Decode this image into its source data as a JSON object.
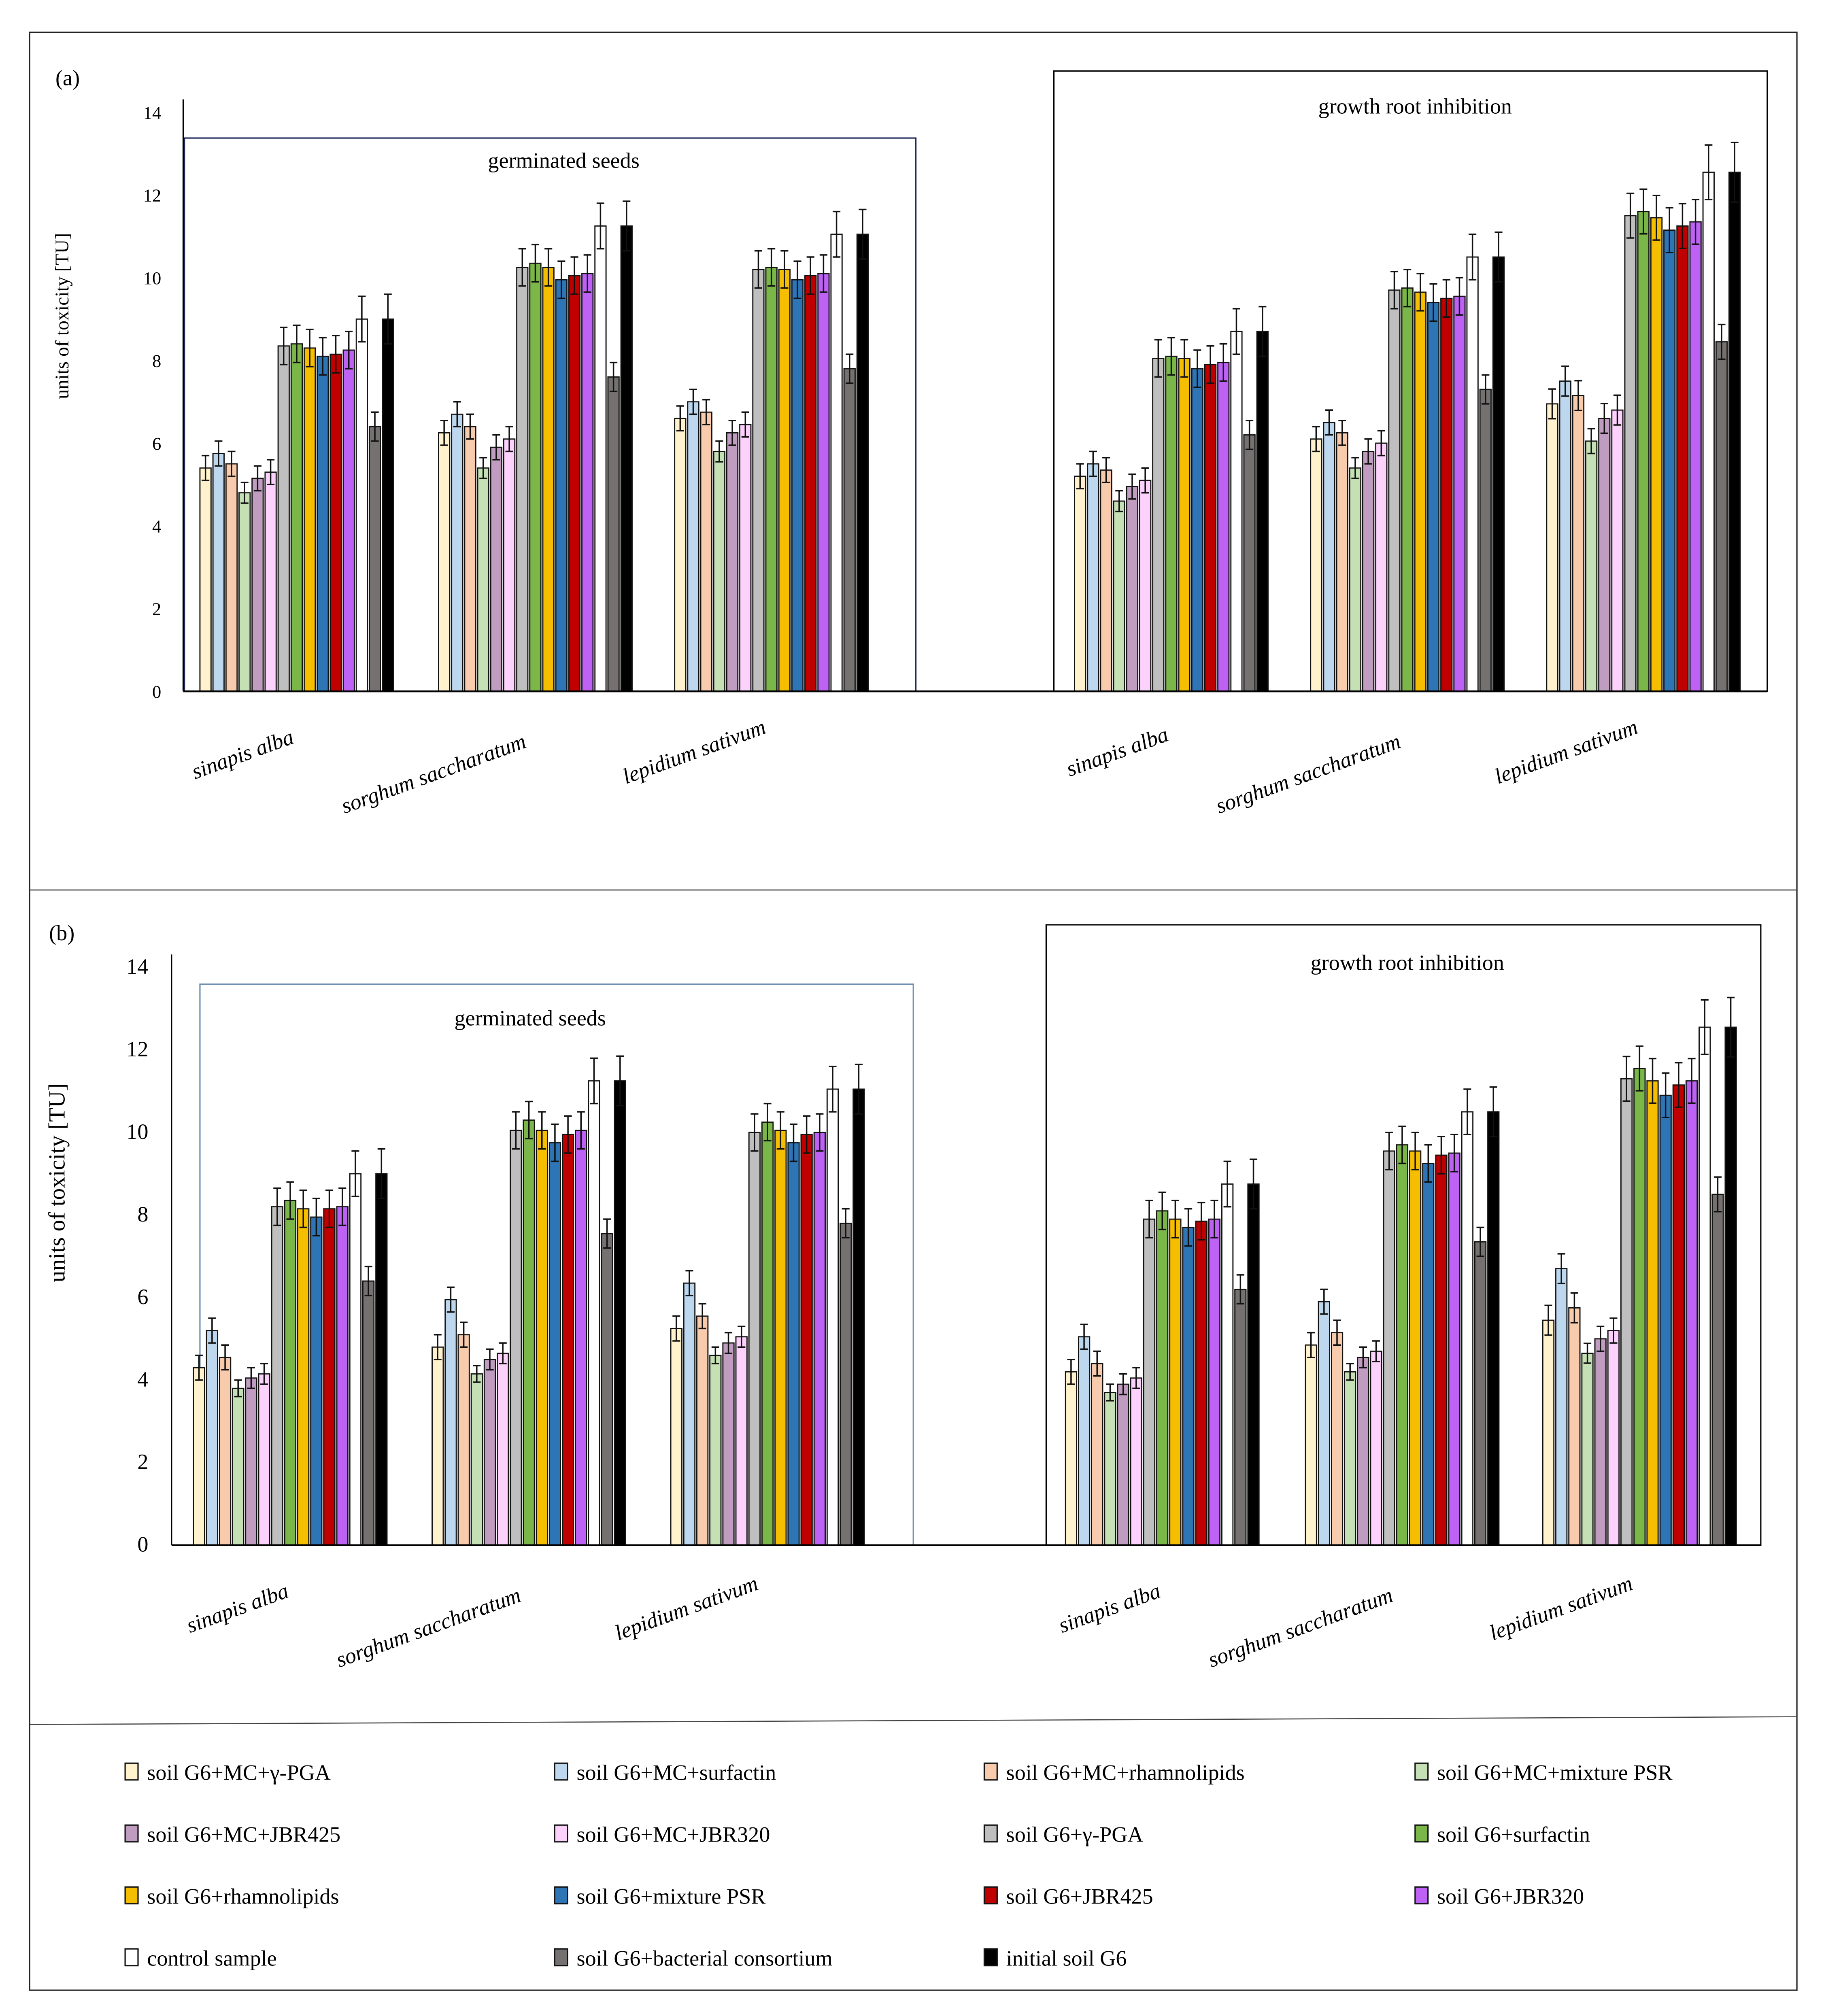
{
  "series": [
    {
      "name": "soil G6+MC+γ-PGA",
      "color": "#FFF2CC"
    },
    {
      "name": "soil G6+MC+surfactin",
      "color": "#BDD7EE"
    },
    {
      "name": "soil G6+MC+rhamnolipids",
      "color": "#F8CBAD"
    },
    {
      "name": "soil G6+MC+mixture PSR",
      "color": "#C5E0B4"
    },
    {
      "name": "soil G6+MC+JBR425",
      "color": "#C09CC0"
    },
    {
      "name": "soil G6+MC+JBR320",
      "color": "#FCD2FC"
    },
    {
      "name": "soil G6+γ-PGA",
      "color": "#BFBFBF"
    },
    {
      "name": "soil G6+surfactin",
      "color": "#7AB648"
    },
    {
      "name": "soil G6+rhamnolipids",
      "color": "#F5BE00"
    },
    {
      "name": "soil G6+mixture PSR",
      "color": "#2E75B6"
    },
    {
      "name": "soil G6+JBR425",
      "color": "#C00000"
    },
    {
      "name": "soil G6+JBR320",
      "color": "#BD62F5"
    },
    {
      "name": "control sample",
      "color": "#FFFFFF"
    },
    {
      "name": "soil G6+bacterial consortium",
      "color": "#767171"
    },
    {
      "name": "initial soil G6",
      "color": "#000000"
    }
  ],
  "chart_data": [
    {
      "type": "bar",
      "panel_label": "(a)",
      "ylabel": "units of toxicity [TU]",
      "ylim": [
        0,
        14
      ],
      "yticks": [
        "0",
        "2",
        "4",
        "6",
        "8",
        "10",
        "12",
        "14"
      ],
      "errors": [
        0.3,
        0.3,
        0.3,
        0.25,
        0.3,
        0.3,
        0.45,
        0.45,
        0.45,
        0.45,
        0.45,
        0.45,
        0.55,
        0.35,
        0.6
      ],
      "groups": [
        {
          "title": "germinated seeds",
          "categories": [
            {
              "name": "sinapis alba",
              "values": [
                5.4,
                5.75,
                5.5,
                4.8,
                5.15,
                5.3,
                8.35,
                8.4,
                8.3,
                8.1,
                8.15,
                8.25,
                9.0,
                6.4,
                9.0
              ]
            },
            {
              "name": "sorghum saccharatum",
              "values": [
                6.25,
                6.7,
                6.4,
                5.4,
                5.9,
                6.1,
                10.25,
                10.35,
                10.25,
                9.95,
                10.05,
                10.1,
                11.25,
                7.6,
                11.25
              ]
            },
            {
              "name": "lepidium sativum",
              "values": [
                6.6,
                7.0,
                6.75,
                5.8,
                6.25,
                6.45,
                10.2,
                10.25,
                10.2,
                9.95,
                10.05,
                10.1,
                11.05,
                7.8,
                11.05
              ]
            }
          ]
        },
        {
          "title": "growth root inhibition",
          "categories": [
            {
              "name": "sinapis alba",
              "values": [
                5.2,
                5.5,
                5.35,
                4.6,
                4.95,
                5.1,
                8.05,
                8.1,
                8.05,
                7.8,
                7.9,
                7.95,
                8.7,
                6.2,
                8.7
              ]
            },
            {
              "name": "sorghum saccharatum",
              "values": [
                6.1,
                6.5,
                6.25,
                5.4,
                5.8,
                6.0,
                9.7,
                9.75,
                9.65,
                9.4,
                9.5,
                9.55,
                10.5,
                7.3,
                10.5
              ]
            },
            {
              "name": "lepidium sativum",
              "values": [
                6.95,
                7.5,
                7.15,
                6.05,
                6.6,
                6.8,
                11.5,
                11.6,
                11.45,
                11.15,
                11.25,
                11.35,
                12.55,
                8.45,
                12.55
              ]
            }
          ]
        }
      ]
    },
    {
      "type": "bar",
      "panel_label": "(b)",
      "ylabel": "units of toxicity [TU]",
      "ylim": [
        0,
        14
      ],
      "yticks": [
        "0",
        "2",
        "4",
        "6",
        "8",
        "10",
        "12",
        "14"
      ],
      "errors": [
        0.3,
        0.3,
        0.3,
        0.2,
        0.25,
        0.25,
        0.45,
        0.45,
        0.45,
        0.45,
        0.45,
        0.45,
        0.55,
        0.35,
        0.6
      ],
      "groups": [
        {
          "title": "germinated seeds",
          "categories": [
            {
              "name": "sinapis alba",
              "values": [
                4.3,
                5.2,
                4.55,
                3.8,
                4.05,
                4.15,
                8.2,
                8.35,
                8.15,
                7.95,
                8.15,
                8.2,
                9.0,
                6.4,
                9.0
              ]
            },
            {
              "name": "sorghum saccharatum",
              "values": [
                4.8,
                5.95,
                5.1,
                4.15,
                4.5,
                4.65,
                10.05,
                10.3,
                10.05,
                9.75,
                9.95,
                10.05,
                11.25,
                7.55,
                11.25
              ]
            },
            {
              "name": "lepidium sativum",
              "values": [
                5.25,
                6.35,
                5.55,
                4.6,
                4.9,
                5.05,
                10.0,
                10.25,
                10.05,
                9.75,
                9.95,
                10.0,
                11.05,
                7.8,
                11.05
              ]
            }
          ]
        },
        {
          "title": "growth root inhibition",
          "categories": [
            {
              "name": "sinapis alba",
              "values": [
                4.2,
                5.05,
                4.4,
                3.7,
                3.9,
                4.05,
                7.9,
                8.1,
                7.9,
                7.7,
                7.85,
                7.9,
                8.75,
                6.2,
                8.75
              ]
            },
            {
              "name": "sorghum saccharatum",
              "values": [
                4.85,
                5.9,
                5.15,
                4.2,
                4.55,
                4.7,
                9.55,
                9.7,
                9.55,
                9.25,
                9.45,
                9.5,
                10.5,
                7.35,
                10.5
              ]
            },
            {
              "name": "lepidium sativum",
              "values": [
                5.45,
                6.7,
                5.75,
                4.65,
                5.0,
                5.2,
                11.3,
                11.55,
                11.25,
                10.9,
                11.15,
                11.25,
                12.55,
                8.5,
                12.55
              ]
            }
          ]
        }
      ]
    }
  ]
}
